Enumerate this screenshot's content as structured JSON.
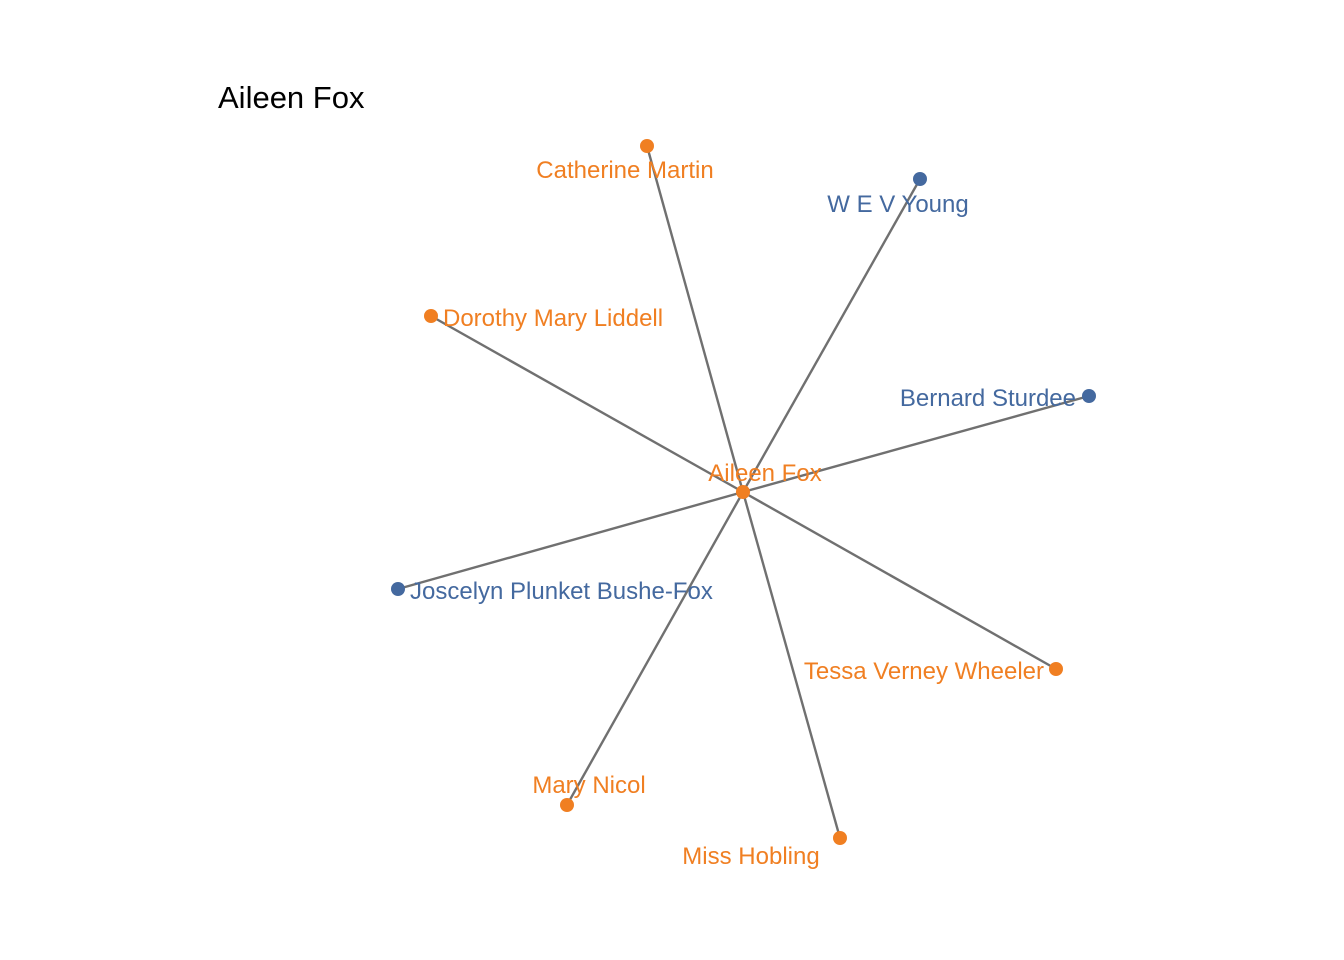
{
  "title": "Aileen Fox",
  "colors": {
    "female": "#F07F22",
    "male": "#44699F",
    "edge": "#707070"
  },
  "center": "Aileen Fox",
  "nodes": [
    {
      "id": "aileen-fox",
      "label": "Aileen Fox",
      "group": "female"
    },
    {
      "id": "catherine-martin",
      "label": "Catherine Martin",
      "group": "female"
    },
    {
      "id": "w-e-v-young",
      "label": "W E V Young",
      "group": "male"
    },
    {
      "id": "dorothy-mary-liddell",
      "label": "Dorothy Mary Liddell",
      "group": "female"
    },
    {
      "id": "bernard-sturdee",
      "label": "Bernard Sturdee",
      "group": "male"
    },
    {
      "id": "joscelyn-plunket-bushe-fox",
      "label": "Joscelyn Plunket Bushe-Fox",
      "group": "male"
    },
    {
      "id": "tessa-verney-wheeler",
      "label": "Tessa Verney Wheeler",
      "group": "female"
    },
    {
      "id": "mary-nicol",
      "label": "Mary Nicol",
      "group": "female"
    },
    {
      "id": "miss-hobling",
      "label": "Miss Hobling",
      "group": "female"
    }
  ],
  "edges": [
    [
      "aileen-fox",
      "catherine-martin"
    ],
    [
      "aileen-fox",
      "w-e-v-young"
    ],
    [
      "aileen-fox",
      "dorothy-mary-liddell"
    ],
    [
      "aileen-fox",
      "bernard-sturdee"
    ],
    [
      "aileen-fox",
      "joscelyn-plunket-bushe-fox"
    ],
    [
      "aileen-fox",
      "tessa-verney-wheeler"
    ],
    [
      "aileen-fox",
      "mary-nicol"
    ],
    [
      "aileen-fox",
      "miss-hobling"
    ]
  ]
}
